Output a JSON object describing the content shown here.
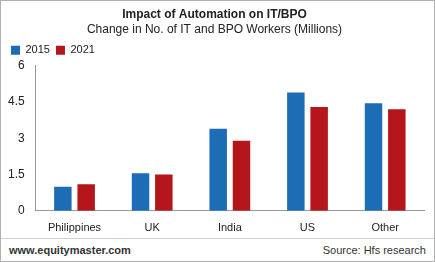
{
  "chart_data": {
    "type": "bar",
    "title": "Impact of Automation on IT/BPO",
    "subtitle": "Change in No. of IT and BPO Workers (Millions)",
    "categories": [
      "Philippines",
      "UK",
      "India",
      "US",
      "Other"
    ],
    "series": [
      {
        "name": "2015",
        "color": "#1c6db5",
        "values": [
          1.0,
          1.55,
          3.4,
          4.9,
          4.45
        ]
      },
      {
        "name": "2021",
        "color": "#b5161b",
        "values": [
          1.1,
          1.5,
          2.9,
          4.3,
          4.2
        ]
      }
    ],
    "ylim": [
      0,
      6
    ],
    "yticks": [
      0,
      1.5,
      3,
      4.5,
      6
    ],
    "grid": false,
    "legend": "top-left",
    "annotations": [
      "www.equitymaster.com",
      "Source: Hfs research"
    ]
  }
}
